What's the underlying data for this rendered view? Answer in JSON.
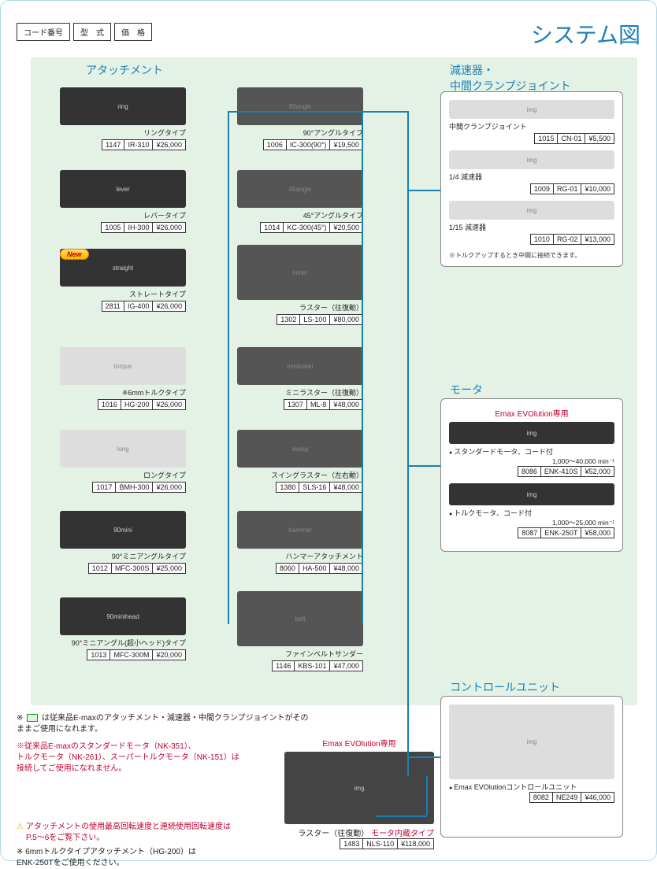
{
  "page": {
    "title": "システム図"
  },
  "legend": {
    "code": "コード番号",
    "model": "型　式",
    "price": "価　格"
  },
  "sections": {
    "attachment": "アタッチメント",
    "reducer": "減速器・\n中間クランプジョイント",
    "motor": "モータ",
    "controlUnit": "コントロールユニット"
  },
  "attachments_left": [
    {
      "name": "リングタイプ",
      "code": "1147",
      "model": "IR-310",
      "price": "¥26,000",
      "new": false,
      "img": "ring",
      "dark": true
    },
    {
      "name": "レバータイプ",
      "code": "1005",
      "model": "IH-300",
      "price": "¥26,000",
      "new": false,
      "img": "lever",
      "dark": true
    },
    {
      "name": "ストレートタイプ",
      "code": "2811",
      "model": "IG-400",
      "price": "¥26,000",
      "new": true,
      "img": "straight",
      "dark": true
    },
    {
      "name": "※6mmトルクタイプ",
      "code": "1016",
      "model": "HG-200",
      "price": "¥26,000",
      "new": false,
      "img": "torque",
      "dark": false
    },
    {
      "name": "ロングタイプ",
      "code": "1017",
      "model": "BMH-300",
      "price": "¥26,000",
      "new": false,
      "img": "long",
      "dark": false
    },
    {
      "name": "90°ミニアングルタイプ",
      "code": "1012",
      "model": "MFC-300S",
      "price": "¥25,000",
      "new": false,
      "img": "90mini",
      "dark": true
    },
    {
      "name": "90°ミニアングル(超小ヘッド)タイプ",
      "code": "1013",
      "model": "MFC-300M",
      "price": "¥20,000",
      "new": false,
      "img": "90minihead",
      "dark": true
    }
  ],
  "attachments_right": [
    {
      "name": "90°アングルタイプ",
      "code": "1006",
      "model": "IC-300(90°)",
      "price": "¥19,500",
      "img": "90angle",
      "tall": false
    },
    {
      "name": "45°アングルタイプ",
      "code": "1014",
      "model": "KC-300(45°)",
      "price": "¥20,500",
      "img": "45angle",
      "tall": false
    },
    {
      "name": "ラスター（往復動）",
      "code": "1302",
      "model": "LS-100",
      "price": "¥80,000",
      "img": "luster",
      "tall": true
    },
    {
      "name": "ミニラスター（往復動）",
      "code": "1307",
      "model": "ML-8",
      "price": "¥48,000",
      "img": "miniluster",
      "tall": false
    },
    {
      "name": "スイングラスター（左右動）",
      "code": "1380",
      "model": "SLS-16",
      "price": "¥48,000",
      "img": "swing",
      "tall": false
    },
    {
      "name": "ハンマーアタッチメント",
      "code": "8060",
      "model": "HA-500",
      "price": "¥48,000",
      "img": "hammer",
      "tall": false
    },
    {
      "name": "ファインベルトサンダー",
      "code": "1146",
      "model": "KBS-101",
      "price": "¥47,000",
      "img": "belt",
      "tall": true
    }
  ],
  "reducers": [
    {
      "name": "中間クランプジョイント",
      "code": "1015",
      "model": "CN-01",
      "price": "¥5,500"
    },
    {
      "name": "1/4 減速器",
      "code": "1009",
      "model": "RG-01",
      "price": "¥10,000"
    },
    {
      "name": "1/15 減速器",
      "code": "1010",
      "model": "RG-02",
      "price": "¥13,000"
    }
  ],
  "reducer_note": "※トルクアップするとき中間に接続できます。",
  "motor": {
    "exclusive": "Emax EVOlution専用",
    "items": [
      {
        "bullet": "スタンダードモータ、コード付",
        "spec": "1,000〜40,000 min⁻¹",
        "code": "8086",
        "model": "ENK-410S",
        "price": "¥52,000"
      },
      {
        "bullet": "トルクモータ、コード付",
        "spec": "1,000〜25,000 min⁻¹",
        "code": "8087",
        "model": "ENK-250T",
        "price": "¥58,000"
      }
    ]
  },
  "controlUnit": {
    "bullet": "Emax EVOlutionコントロールユニット",
    "code": "8082",
    "model": "NE249",
    "price": "¥46,000"
  },
  "bottom_luster": {
    "exclusive": "Emax EVOlution専用",
    "name": "ラスター（往復動）",
    "subtitle": "モータ内蔵タイプ",
    "code": "1483",
    "model": "NLS-110",
    "price": "¥118,000"
  },
  "footnotes": {
    "green_note": "は従来品E-maxのアタッチメント・減速器・中間クランプジョイントがそのままご使用になれます。",
    "red_note": "※従来品E-maxのスタンダードモータ（NK-351）、\nトルクモータ（NK-261）、スーパートルクモータ（NK-151）は\n接続してご使用になれません。",
    "warn": "アタッチメントの使用最高回転速度と連続使用回転速度は\nP.5〜6をご覧下さい。",
    "hg200": "※ 6mmトルクタイプアタッチメント（HG-200）は\nENK-250Tをご使用ください。"
  },
  "new_label": "New"
}
